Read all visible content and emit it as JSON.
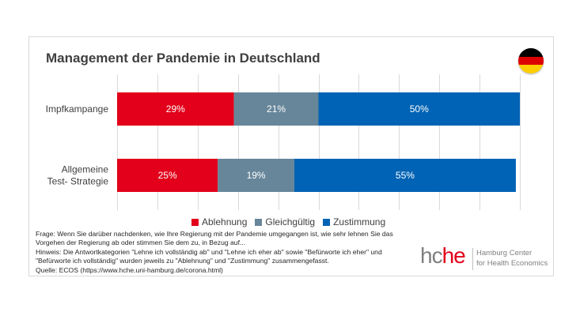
{
  "chart_data": {
    "type": "bar",
    "orientation": "horizontal",
    "stacked": true,
    "title": "Management der Pandemie in Deutschland",
    "categories": [
      [
        "Impfkampange"
      ],
      [
        "Allgemeine",
        "Test- Strategie"
      ]
    ],
    "series": [
      {
        "name": "Ablehnung",
        "color": "#e2001a",
        "values": [
          29,
          25
        ],
        "labels": [
          "29%",
          "25%"
        ]
      },
      {
        "name": "Gleichgültig",
        "color": "#67869a",
        "values": [
          21,
          19
        ],
        "labels": [
          "21%",
          "19%"
        ]
      },
      {
        "name": "Zustimmung",
        "color": "#0063b5",
        "values": [
          50,
          55
        ],
        "labels": [
          "50%",
          "55%"
        ]
      }
    ],
    "xlim": [
      0,
      100
    ],
    "grid": true,
    "legend_position": "bottom"
  },
  "notes": {
    "frage_line1": "Frage: Wenn Sie darüber nachdenken, wie Ihre Regierung mit der Pandemie umgegangen ist,  wie sehr lehnen Sie das",
    "frage_line2": "Vorgehen der Regierung ab oder stimmen Sie dem zu, in Bezug auf...",
    "hinweis_line1": "Hinweis: Die Antwortkategorien \"Lehne ich vollständig ab\" und \"Lehne ich eher ab\" sowie \"Befürworte ich eher\" und",
    "hinweis_line2": "\"Befürworte ich vollständig\" wurden jeweils zu \"Ablehnung\" und \"Zustimmung\" zusammengefasst.",
    "quelle": "Quelle: ECOS (https://www.hche.uni-hamburg.de/corona.html)"
  },
  "logo": {
    "text_gray": "hc",
    "text_red": "he",
    "sub_line1": "Hamburg Center",
    "sub_line2": "for Health Economics"
  },
  "flag": {
    "name": "Germany",
    "colors": [
      "#000000",
      "#dd0000",
      "#ffce00"
    ]
  }
}
